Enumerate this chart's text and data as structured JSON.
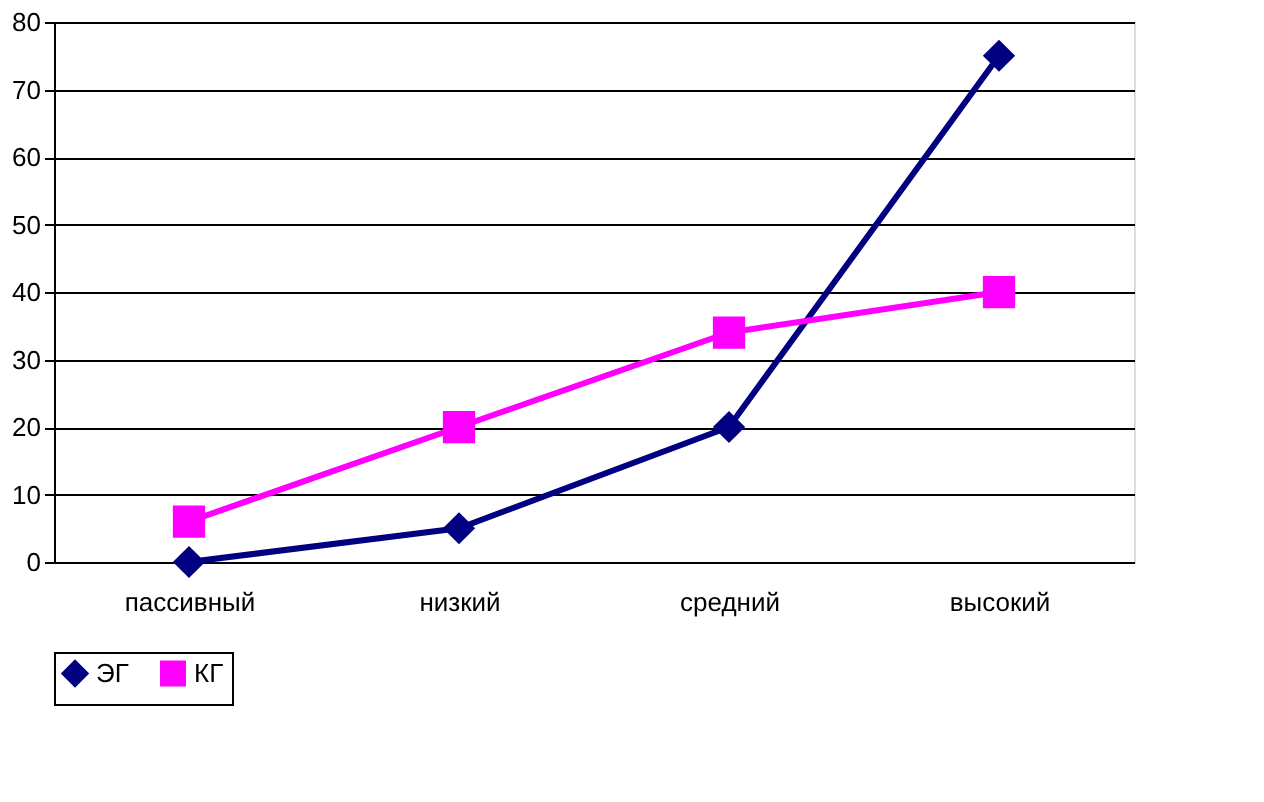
{
  "chart_data": {
    "type": "line",
    "categories": [
      "пассивный",
      "низкий",
      "средний",
      "высокий"
    ],
    "series": [
      {
        "name": "ЭГ",
        "color": "#000080",
        "marker": "diamond",
        "values": [
          0,
          5,
          20,
          75
        ]
      },
      {
        "name": "КГ",
        "color": "#ff00ff",
        "marker": "square",
        "values": [
          6,
          20,
          34,
          40
        ]
      }
    ],
    "ylim": [
      0,
      80
    ],
    "yticks": [
      0,
      10,
      20,
      30,
      40,
      50,
      60,
      70,
      80
    ],
    "grid": "y",
    "legend": "bottom"
  }
}
